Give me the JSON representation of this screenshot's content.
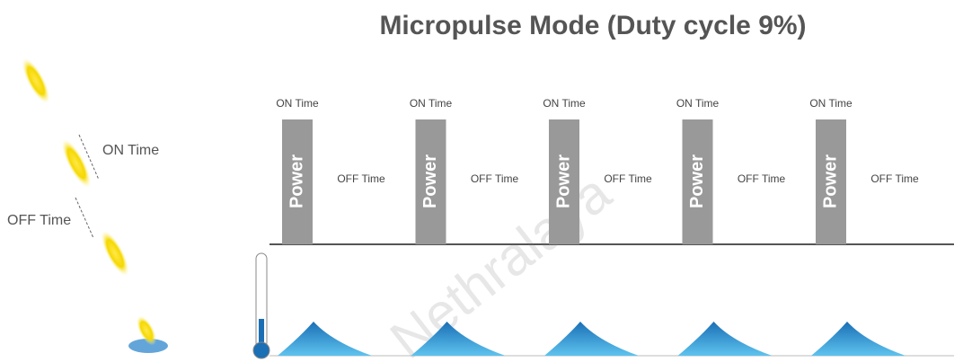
{
  "title": "Micropulse Mode (Duty cycle 9%)",
  "legend": {
    "on_label": "ON Time",
    "off_label": "OFF Time"
  },
  "pulses": [
    {
      "on_label": "ON Time",
      "power_label": "Power",
      "off_label": "OFF Time"
    },
    {
      "on_label": "ON Time",
      "power_label": "Power",
      "off_label": "OFF Time"
    },
    {
      "on_label": "ON Time",
      "power_label": "Power",
      "off_label": "OFF Time"
    },
    {
      "on_label": "ON Time",
      "power_label": "Power",
      "off_label": "OFF Time"
    },
    {
      "on_label": "ON Time",
      "power_label": "Power",
      "off_label": "OFF Time"
    }
  ],
  "watermark": "Nethralaya"
}
